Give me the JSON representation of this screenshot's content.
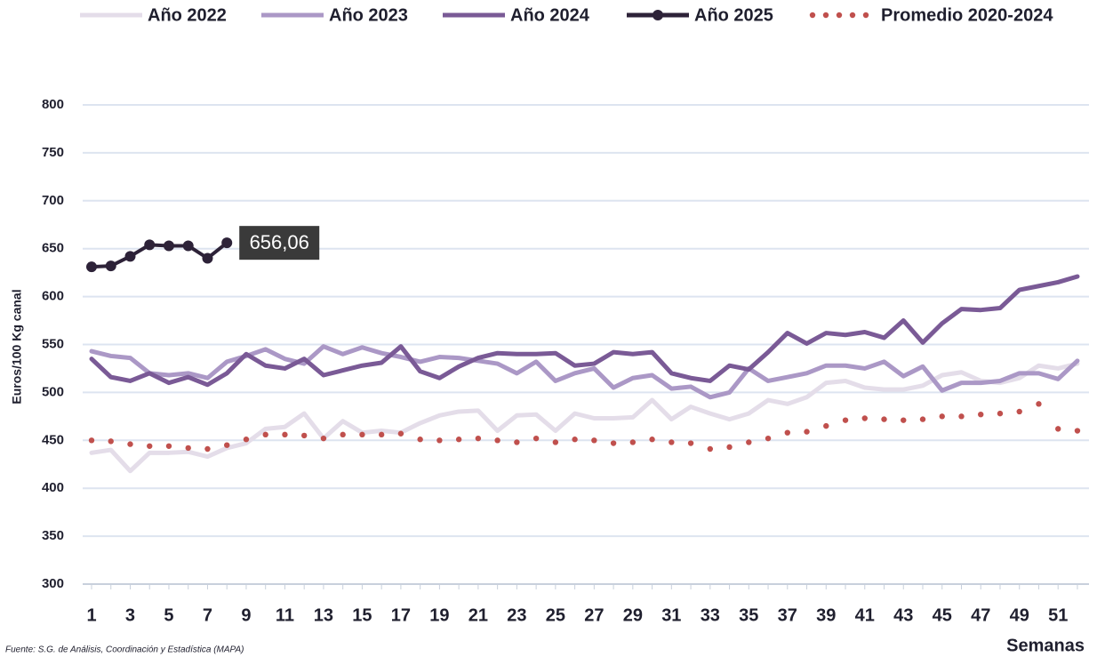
{
  "chart_data": {
    "type": "line",
    "y_label": "Euros/100 Kg canal",
    "x_label": "Semanas",
    "source": "Fuente: S.G. de Análisis, Coordinación y Estadística (MAPA)",
    "x": [
      1,
      2,
      3,
      4,
      5,
      6,
      7,
      8,
      9,
      10,
      11,
      12,
      13,
      14,
      15,
      16,
      17,
      18,
      19,
      20,
      21,
      22,
      23,
      24,
      25,
      26,
      27,
      28,
      29,
      30,
      31,
      32,
      33,
      34,
      35,
      36,
      37,
      38,
      39,
      40,
      41,
      42,
      43,
      44,
      45,
      46,
      47,
      48,
      49,
      50,
      51,
      52
    ],
    "xlim": [
      0.54,
      52.6
    ],
    "xticks": [
      1,
      3,
      5,
      7,
      9,
      11,
      13,
      15,
      17,
      19,
      21,
      23,
      25,
      27,
      29,
      31,
      33,
      35,
      37,
      39,
      41,
      43,
      45,
      47,
      49,
      51
    ],
    "ylim": [
      300,
      800
    ],
    "yticks": [
      300,
      350,
      400,
      450,
      500,
      550,
      600,
      650,
      700,
      750,
      800
    ],
    "grid": true,
    "legend": "top",
    "series": [
      {
        "name": "Año 2022",
        "color": "#e4dde9",
        "style": "solid",
        "values": [
          437,
          440,
          418,
          437,
          437,
          438,
          433,
          442,
          447,
          462,
          464,
          478,
          452,
          470,
          458,
          460,
          458,
          468,
          476,
          480,
          481,
          460,
          476,
          477,
          460,
          478,
          473,
          473,
          474,
          492,
          472,
          485,
          478,
          472,
          478,
          492,
          488,
          495,
          510,
          512,
          505,
          503,
          503,
          507,
          518,
          521,
          512,
          510,
          515,
          528,
          525,
          530
        ]
      },
      {
        "name": "Año 2023",
        "color": "#ab98c6",
        "style": "solid",
        "values": [
          543,
          538,
          536,
          520,
          518,
          520,
          515,
          532,
          538,
          545,
          535,
          530,
          548,
          540,
          547,
          541,
          537,
          532,
          537,
          536,
          533,
          530,
          520,
          532,
          512,
          520,
          525,
          505,
          515,
          518,
          504,
          506,
          495,
          500,
          525,
          512,
          516,
          520,
          528,
          528,
          525,
          532,
          517,
          527,
          502,
          510,
          510,
          512,
          520,
          520,
          514,
          533
        ]
      },
      {
        "name": "Año 2024",
        "color": "#7a5a96",
        "style": "solid",
        "values": [
          535,
          516,
          512,
          520,
          510,
          516,
          508,
          520,
          540,
          528,
          525,
          535,
          518,
          523,
          528,
          531,
          548,
          522,
          515,
          527,
          536,
          541,
          540,
          540,
          541,
          528,
          530,
          542,
          540,
          542,
          520,
          515,
          512,
          528,
          524,
          542,
          562,
          551,
          562,
          560,
          563,
          557,
          575,
          552,
          572,
          587,
          586,
          588,
          607,
          611,
          615,
          621
        ]
      },
      {
        "name": "Año 2025",
        "color": "#2d2238",
        "style": "markers",
        "values": [
          631,
          632,
          642,
          654,
          653,
          653,
          640,
          656.06,
          null,
          null,
          null,
          null,
          null,
          null,
          null,
          null,
          null,
          null,
          null,
          null,
          null,
          null,
          null,
          null,
          null,
          null,
          null,
          null,
          null,
          null,
          null,
          null,
          null,
          null,
          null,
          null,
          null,
          null,
          null,
          null,
          null,
          null,
          null,
          null,
          null,
          null,
          null,
          null,
          null,
          null,
          null,
          null
        ],
        "value_labels": [
          null,
          null,
          null,
          null,
          null,
          null,
          null,
          "656,06",
          null,
          null,
          null,
          null,
          null,
          null,
          null,
          null,
          null,
          null,
          null,
          null,
          null,
          null,
          null,
          null,
          null,
          null,
          null,
          null,
          null,
          null,
          null,
          null,
          null,
          null,
          null,
          null,
          null,
          null,
          null,
          null,
          null,
          null,
          null,
          null,
          null,
          null,
          null,
          null,
          null,
          null,
          null,
          null
        ]
      },
      {
        "name": "Promedio 2020-2024",
        "color": "#c0504d",
        "style": "dotted",
        "values": [
          450,
          449,
          446,
          444,
          444,
          442,
          441,
          445,
          451,
          456,
          456,
          455,
          452,
          456,
          456,
          456,
          457,
          451,
          450,
          451,
          452,
          450,
          448,
          452,
          448,
          451,
          450,
          447,
          448,
          451,
          448,
          447,
          441,
          443,
          448,
          452,
          458,
          459,
          465,
          471,
          473,
          472,
          471,
          472,
          475,
          475,
          477,
          478,
          480,
          488,
          462,
          460
        ]
      }
    ]
  }
}
